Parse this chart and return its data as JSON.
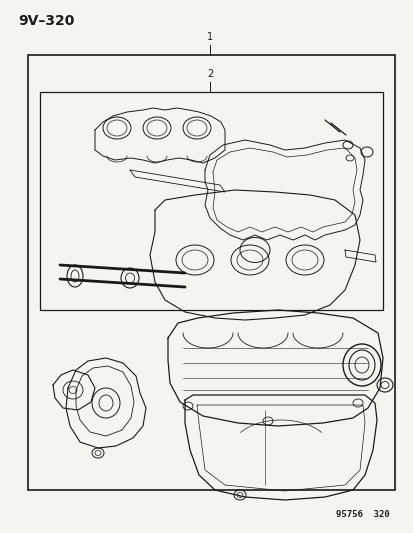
{
  "title": "9V–320",
  "footer": "95756  320",
  "bg_color": "#f5f5f0",
  "line_color": "#1a1a1a",
  "fig_width": 4.14,
  "fig_height": 5.33,
  "dpi": 100,
  "label1": "1",
  "label2": "2"
}
